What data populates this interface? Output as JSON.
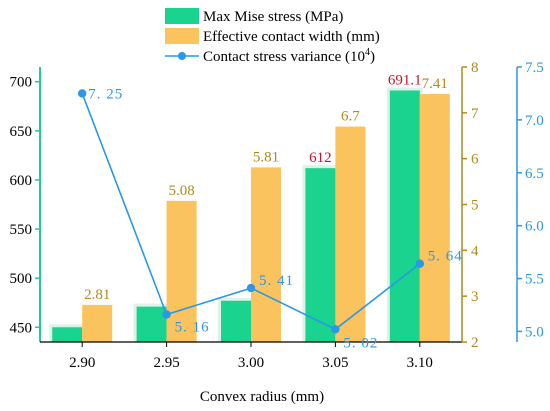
{
  "chart_data": {
    "type": "bar",
    "xlabel": "Convex radius (mm)",
    "categories": [
      "2.90",
      "2.95",
      "3.00",
      "3.05",
      "3.10"
    ],
    "series": [
      {
        "name": "Max Mise stress (MPa)",
        "type": "bar",
        "axis": "left",
        "color": "#1ad38e",
        "values": [
          450,
          471,
          477,
          612,
          691.1
        ],
        "labels": [
          "",
          "",
          "",
          "612",
          "691.1"
        ],
        "label_color": "#c0142a"
      },
      {
        "name": "Effective contact width (mm)",
        "type": "bar",
        "axis": "right1",
        "color": "#fbc35d",
        "values": [
          2.81,
          5.08,
          5.81,
          6.7,
          7.41
        ],
        "labels": [
          "2.81",
          "5.08",
          "5.81",
          "6.7",
          "7.41"
        ],
        "label_color": "#b08a1d"
      },
      {
        "name": "Contact stress variance (10",
        "name_sup": "4",
        "name_end": ")",
        "type": "line",
        "axis": "right2",
        "color": "#2a97e8",
        "values": [
          7.25,
          5.16,
          5.41,
          5.02,
          5.64
        ],
        "labels": [
          "7. 25",
          "5. 16",
          "5. 41",
          "5. 02",
          "5. 64"
        ],
        "label_color": "#2a97e8"
      }
    ],
    "axes": {
      "left": {
        "ylim": [
          435,
          715
        ],
        "ticks": [
          "450",
          "500",
          "550",
          "600",
          "650",
          "700"
        ],
        "tick_values": [
          450,
          500,
          550,
          600,
          650,
          700
        ],
        "color": "#1ad38e",
        "tick_text_color": "#000000"
      },
      "right1": {
        "ylim": [
          2,
          8
        ],
        "ticks": [
          "2",
          "3",
          "4",
          "5",
          "6",
          "7",
          "8"
        ],
        "tick_values": [
          2,
          3,
          4,
          5,
          6,
          7,
          8
        ],
        "color": "#b08a1d"
      },
      "right2": {
        "ylim": [
          4.9,
          7.5
        ],
        "ticks": [
          "5.0",
          "5.5",
          "6.0",
          "6.5",
          "7.0",
          "7.5"
        ],
        "tick_values": [
          5.0,
          5.5,
          6.0,
          6.5,
          7.0,
          7.5
        ],
        "color": "#2a97e8"
      }
    },
    "legend_position": "top"
  }
}
